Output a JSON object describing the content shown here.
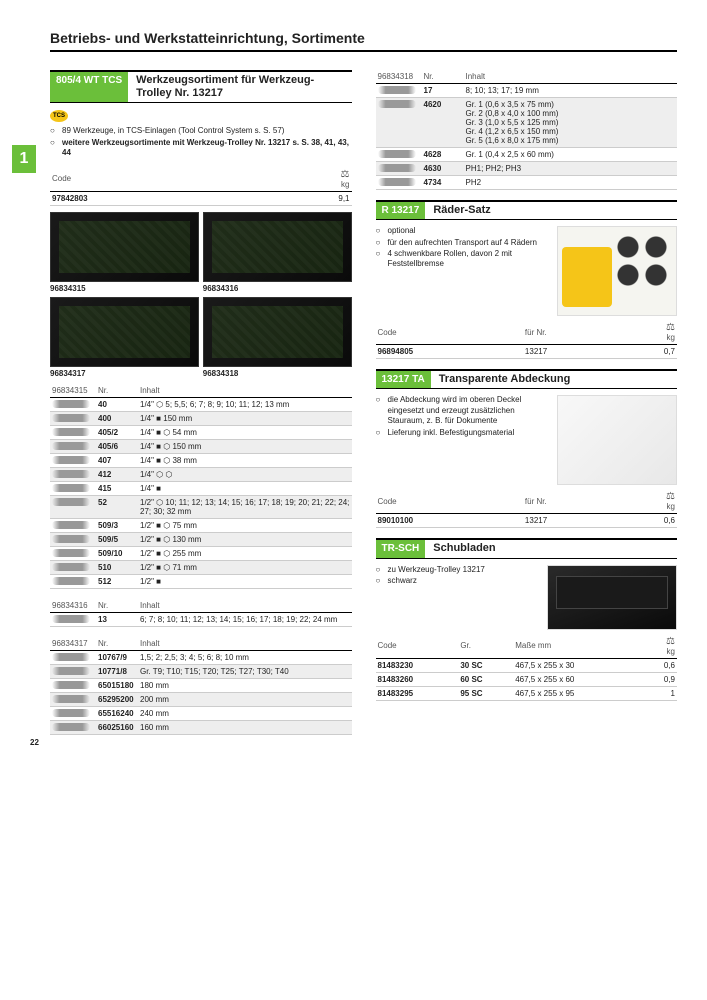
{
  "pageTitle": "Betriebs- und Werkstatteinrichtung, Sortimente",
  "sectionNumber": "1",
  "pageNumber": "22",
  "weightIcon": "⚖",
  "left": {
    "header": {
      "tag": "805/4 WT TCS",
      "title": "Werkzeugsortiment für Werkzeug-Trolley Nr. 13217"
    },
    "tcsBadge": "TCS",
    "notes": [
      {
        "mark": "○",
        "text": "89 Werkzeuge, in TCS-Einlagen (Tool Control System s. S. 57)",
        "bold": false
      },
      {
        "mark": "○",
        "text": "weitere Werkzeugsortimente mit Werkzeug-Trolley Nr. 13217 s. S. 38, 41, 43, 44",
        "bold": true
      }
    ],
    "topTable": {
      "headers": [
        "Code",
        "kg"
      ],
      "rows": [
        [
          "97842803",
          "9,1"
        ]
      ]
    },
    "imageCaptions": [
      "96834315",
      "96834316",
      "96834317",
      "96834318"
    ],
    "t315": {
      "id": "96834315",
      "headers": [
        "Nr.",
        "Inhalt"
      ],
      "rows": [
        {
          "nr": "40",
          "inhalt": "1/4\" ⬡ 5; 5,5; 6; 7; 8; 9; 10; 11; 12; 13 mm",
          "shade": false
        },
        {
          "nr": "400",
          "inhalt": "1/4\" ■ 150 mm",
          "shade": true
        },
        {
          "nr": "405/2",
          "inhalt": "1/4\" ■ ⬡ 54 mm",
          "shade": false
        },
        {
          "nr": "405/6",
          "inhalt": "1/4\" ■ ⬡ 150 mm",
          "shade": true
        },
        {
          "nr": "407",
          "inhalt": "1/4\" ■ ⬡ 38 mm",
          "shade": false
        },
        {
          "nr": "412",
          "inhalt": "1/4\" ⬡ ⬡",
          "shade": true
        },
        {
          "nr": "415",
          "inhalt": "1/4\" ■",
          "shade": false
        },
        {
          "nr": "52",
          "inhalt": "1/2\" ⬡ 10; 11; 12; 13; 14; 15; 16; 17; 18; 19; 20; 21; 22; 24; 27; 30; 32 mm",
          "shade": true
        },
        {
          "nr": "509/3",
          "inhalt": "1/2\" ■ ⬡ 75 mm",
          "shade": false
        },
        {
          "nr": "509/5",
          "inhalt": "1/2\" ■ ⬡ 130 mm",
          "shade": true
        },
        {
          "nr": "509/10",
          "inhalt": "1/2\" ■ ⬡ 255 mm",
          "shade": false
        },
        {
          "nr": "510",
          "inhalt": "1/2\" ■ ⬡ 71 mm",
          "shade": true
        },
        {
          "nr": "512",
          "inhalt": "1/2\" ■",
          "shade": false
        }
      ]
    },
    "t316": {
      "id": "96834316",
      "headers": [
        "Nr.",
        "Inhalt"
      ],
      "rows": [
        {
          "nr": "13",
          "inhalt": "6; 7; 8; 10; 11; 12; 13; 14; 15; 16; 17; 18; 19; 22; 24 mm",
          "shade": false
        }
      ]
    },
    "t317": {
      "id": "96834317",
      "headers": [
        "Nr.",
        "Inhalt"
      ],
      "rows": [
        {
          "nr": "10767/9",
          "inhalt": "1,5; 2; 2,5; 3; 4; 5; 6; 8; 10 mm",
          "shade": false
        },
        {
          "nr": "10771/8",
          "inhalt": "Gr. T9; T10; T15; T20; T25; T27; T30; T40",
          "shade": true
        },
        {
          "nr": "65015180",
          "inhalt": "180 mm",
          "shade": false
        },
        {
          "nr": "65295200",
          "inhalt": "200 mm",
          "shade": true
        },
        {
          "nr": "65516240",
          "inhalt": "240 mm",
          "shade": false
        },
        {
          "nr": "66025160",
          "inhalt": "160 mm",
          "shade": true
        }
      ]
    }
  },
  "right": {
    "t318": {
      "id": "96834318",
      "headers": [
        "Nr.",
        "Inhalt"
      ],
      "rows": [
        {
          "nr": "17",
          "inhalt": "8; 10; 13; 17; 19 mm",
          "shade": false
        },
        {
          "nr": "4620",
          "inhalt": "Gr. 1 (0,6 x 3,5 x 75 mm)\nGr. 2 (0,8 x 4,0 x 100 mm)\nGr. 3 (1,0 x 5,5 x 125 mm)\nGr. 4 (1,2 x 6,5 x 150 mm)\nGr. 5 (1,6 x 8,0 x 175 mm)",
          "shade": true
        },
        {
          "nr": "4628",
          "inhalt": "Gr. 1 (0,4 x 2,5 x 60 mm)",
          "shade": false
        },
        {
          "nr": "4630",
          "inhalt": "PH1; PH2; PH3",
          "shade": true
        },
        {
          "nr": "4734",
          "inhalt": "PH2",
          "shade": false
        }
      ]
    },
    "r13217": {
      "header": {
        "tag": "R 13217",
        "title": "Räder-Satz"
      },
      "notes": [
        {
          "mark": "○",
          "text": "optional"
        },
        {
          "mark": "○",
          "text": "für den aufrechten Transport auf 4 Rädern"
        },
        {
          "mark": "○",
          "text": "4 schwenkbare Rollen, davon 2 mit Feststellbremse"
        }
      ],
      "table": {
        "headers": [
          "Code",
          "für Nr.",
          "kg"
        ],
        "rows": [
          [
            "96894805",
            "13217",
            "0,7"
          ]
        ]
      }
    },
    "ta13217": {
      "header": {
        "tag": "13217 TA",
        "title": "Transparente Abdeckung"
      },
      "notes": [
        {
          "mark": "○",
          "text": "die Abdeckung wird im oberen Deckel eingesetzt und erzeugt zusätzlichen Stauraum, z. B. für Dokumente"
        },
        {
          "mark": "○",
          "text": "Lieferung inkl. Befestigungsmaterial"
        }
      ],
      "table": {
        "headers": [
          "Code",
          "für Nr.",
          "kg"
        ],
        "rows": [
          [
            "89010100",
            "13217",
            "0,6"
          ]
        ]
      }
    },
    "trsch": {
      "header": {
        "tag": "TR-SCH",
        "title": "Schubladen"
      },
      "notes": [
        {
          "mark": "○",
          "text": "zu Werkzeug-Trolley 13217"
        },
        {
          "mark": "○",
          "text": "schwarz"
        }
      ],
      "table": {
        "headers": [
          "Code",
          "Gr.",
          "Maße mm",
          "kg"
        ],
        "rows": [
          [
            "81483230",
            "30 SC",
            "467,5 x 255 x 30",
            "0,6"
          ],
          [
            "81483260",
            "60 SC",
            "467,5 x 255 x 60",
            "0,9"
          ],
          [
            "81483295",
            "95 SC",
            "467,5 x 255 x 95",
            "1"
          ]
        ]
      }
    }
  }
}
